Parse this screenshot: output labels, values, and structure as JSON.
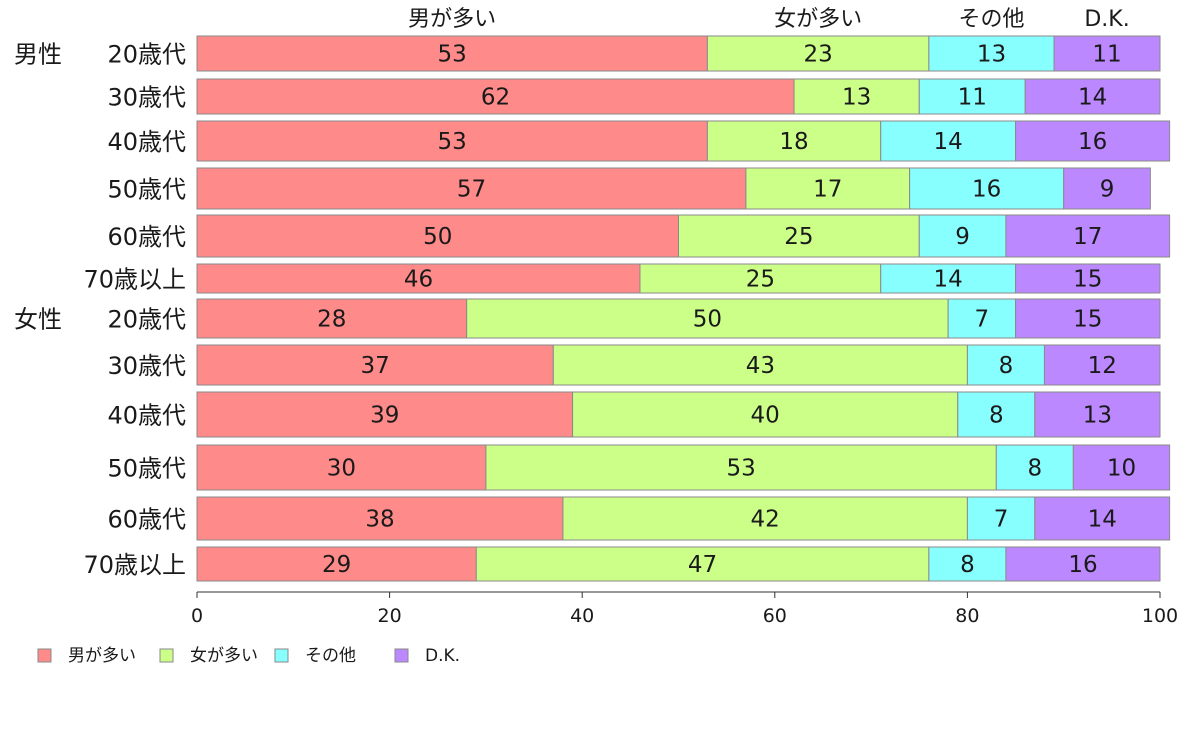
{
  "chart_data": {
    "type": "bar",
    "orientation": "horizontal",
    "stacked": true,
    "xlim": [
      0,
      100
    ],
    "xticks": [
      0,
      20,
      40,
      60,
      80,
      100
    ],
    "grid": false,
    "legend_position": "bottom-left",
    "groups": [
      {
        "label": "男性",
        "rows": [
          "20歳代",
          "30歳代",
          "40歳代",
          "50歳代",
          "60歳代",
          "70歳以上"
        ]
      },
      {
        "label": "女性",
        "rows": [
          "20歳代",
          "30歳代",
          "40歳代",
          "50歳代",
          "60歳代",
          "70歳以上"
        ]
      }
    ],
    "categories": [
      "20歳代",
      "30歳代",
      "40歳代",
      "50歳代",
      "60歳代",
      "70歳以上",
      "20歳代",
      "30歳代",
      "40歳代",
      "50歳代",
      "60歳代",
      "70歳以上"
    ],
    "series": [
      {
        "name": "男が多い",
        "color": "#ff8a8a",
        "values": [
          53,
          62,
          53,
          57,
          50,
          46,
          28,
          37,
          39,
          30,
          38,
          29
        ]
      },
      {
        "name": "女が多い",
        "color": "#ccff88",
        "values": [
          23,
          13,
          18,
          17,
          25,
          25,
          50,
          43,
          40,
          53,
          42,
          47
        ]
      },
      {
        "name": "その他",
        "color": "#88ffff",
        "values": [
          13,
          11,
          14,
          16,
          9,
          14,
          7,
          8,
          8,
          8,
          7,
          8
        ]
      },
      {
        "name": "D.K.",
        "color": "#bb88ff",
        "values": [
          11,
          14,
          16,
          9,
          17,
          15,
          15,
          12,
          13,
          10,
          14,
          16
        ]
      }
    ]
  }
}
